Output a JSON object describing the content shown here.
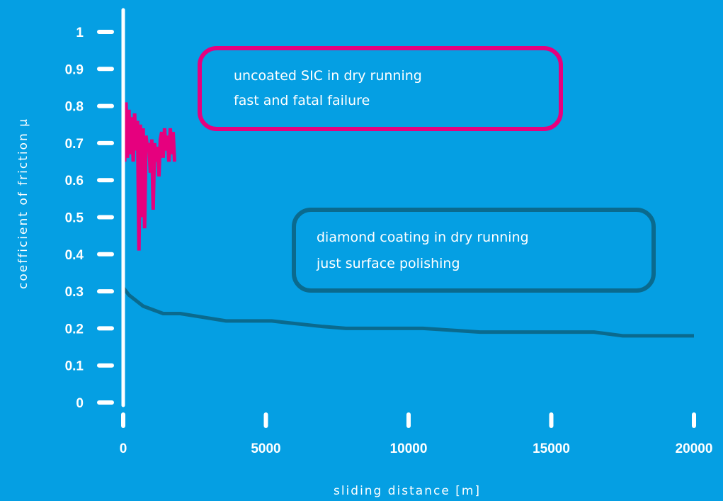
{
  "chart_data": {
    "type": "line",
    "xlabel": "sliding distance [m]",
    "ylabel": "coefficient of friction μ",
    "xlim": [
      0,
      20000
    ],
    "ylim": [
      0,
      1
    ],
    "x_ticks": [
      "0",
      "5000",
      "10000",
      "15000",
      "20000"
    ],
    "y_ticks": [
      "0",
      "0.1",
      "0.2",
      "0.3",
      "0.4",
      "0.5",
      "0.6",
      "0.7",
      "0.8",
      "0.9",
      "1"
    ],
    "grid": false,
    "legend": "none",
    "series": [
      {
        "color": "#e6007e",
        "x": [
          0,
          0,
          50,
          100,
          150,
          200,
          250,
          300,
          350,
          400,
          450,
          500,
          550,
          600,
          650,
          700,
          750,
          800,
          850,
          900,
          950,
          1000,
          1050,
          1100,
          1150,
          1200,
          1250,
          1300,
          1350,
          1400,
          1450,
          1500,
          1550,
          1600,
          1650,
          1700,
          1750,
          1800
        ],
        "y": [
          0,
          0.78,
          0.65,
          0.81,
          0.66,
          0.79,
          0.67,
          0.77,
          0.65,
          0.78,
          0.68,
          0.76,
          0.41,
          0.75,
          0.5,
          0.74,
          0.47,
          0.72,
          0.68,
          0.7,
          0.62,
          0.71,
          0.52,
          0.7,
          0.65,
          0.69,
          0.61,
          0.71,
          0.73,
          0.66,
          0.74,
          0.68,
          0.72,
          0.65,
          0.74,
          0.67,
          0.73,
          0.65
        ]
      },
      {
        "color": "#0a6a8e",
        "x": [
          0,
          200,
          700,
          1400,
          2000,
          2800,
          3600,
          4500,
          5200,
          5800,
          6400,
          7000,
          7800,
          8500,
          9500,
          10500,
          11500,
          12500,
          13500,
          14500,
          15500,
          16500,
          17500,
          18500,
          19500,
          20000
        ],
        "y": [
          0.31,
          0.29,
          0.26,
          0.24,
          0.24,
          0.23,
          0.22,
          0.22,
          0.22,
          0.215,
          0.21,
          0.205,
          0.2,
          0.2,
          0.2,
          0.2,
          0.195,
          0.19,
          0.19,
          0.19,
          0.19,
          0.19,
          0.18,
          0.18,
          0.18,
          0.18
        ]
      }
    ],
    "annotations": [
      {
        "lines": [
          "uncoated SIC in dry running",
          "fast and fatal failure"
        ],
        "border_color": "#e6007e"
      },
      {
        "lines": [
          "diamond coating in dry running",
          "just surface polishing"
        ],
        "border_color": "#0a6a8e"
      }
    ]
  }
}
